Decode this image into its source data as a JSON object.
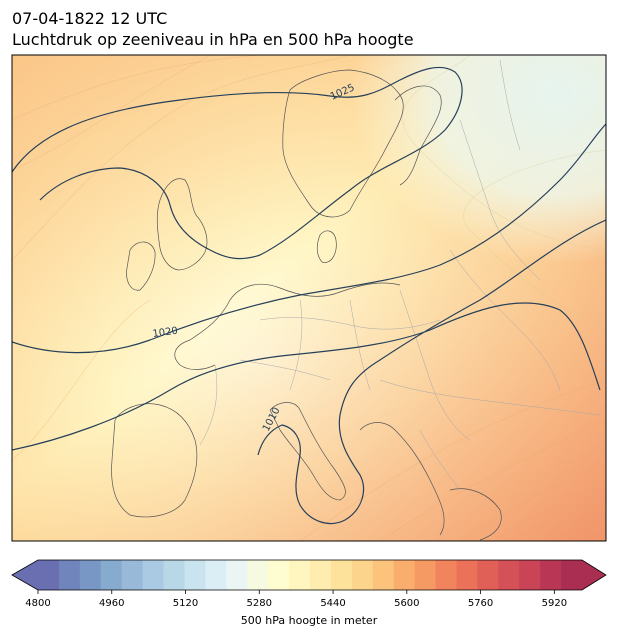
{
  "header": {
    "datetime": "07-04-1822 12 UTC",
    "subtitle": "Luchtdruk op zeeniveau in hPa en 500 hPa hoogte"
  },
  "map": {
    "isobar_labels": [
      "1025",
      "1020",
      "1010"
    ],
    "isobar_color": "#27405a",
    "border_color": "#a8a8a8"
  },
  "colorbar": {
    "label": "500 hPa hoogte in meter",
    "tick_labels": [
      "4800",
      "4960",
      "5120",
      "5280",
      "5440",
      "5600",
      "5760",
      "5920"
    ],
    "range": [
      4800,
      5980
    ],
    "step": 40,
    "colors": [
      "#6a6fb2",
      "#6f85bb",
      "#7897c4",
      "#87aacf",
      "#98bad8",
      "#a9cae2",
      "#b8d8e8",
      "#c9e3ef",
      "#dbeef5",
      "#ebf6f4",
      "#f6fae0",
      "#fefcd1",
      "#fff5bf",
      "#feedae",
      "#fde29c",
      "#fdd48b",
      "#fcc37c",
      "#f9ae6e",
      "#f69a63",
      "#f1845c",
      "#eb7159",
      "#e06058",
      "#d45157",
      "#c84456",
      "#b93755",
      "#a92e52"
    ],
    "extend": "both"
  }
}
